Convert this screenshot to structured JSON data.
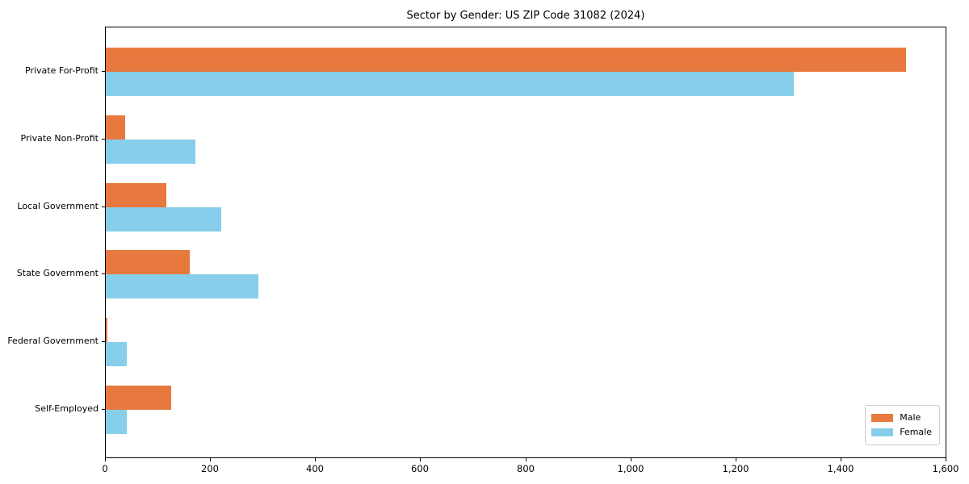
{
  "chart_data": {
    "type": "bar",
    "orientation": "horizontal",
    "title": "Sector by Gender: US ZIP Code 31082 (2024)",
    "categories": [
      "Private For-Profit",
      "Private Non-Profit",
      "Local Government",
      "State Government",
      "Federal Government",
      "Self-Employed"
    ],
    "series": [
      {
        "name": "Male",
        "color": "#e8793e",
        "values": [
          1525,
          37,
          115,
          160,
          3,
          125
        ]
      },
      {
        "name": "Female",
        "color": "#87ceeb",
        "values": [
          1310,
          170,
          220,
          290,
          40,
          40
        ]
      }
    ],
    "xlabel": "",
    "ylabel": "",
    "xlim": [
      0,
      1600
    ],
    "x_ticks": [
      0,
      200,
      400,
      600,
      800,
      1000,
      1200,
      1400,
      1600
    ],
    "x_tick_labels": [
      "0",
      "200",
      "400",
      "600",
      "800",
      "1,000",
      "1,200",
      "1,400",
      "1,600"
    ],
    "grid": false,
    "legend": {
      "position": "lower-right"
    },
    "colors": {
      "background": "#ffffff",
      "axis": "#000000",
      "legend_border": "#cccccc"
    }
  }
}
